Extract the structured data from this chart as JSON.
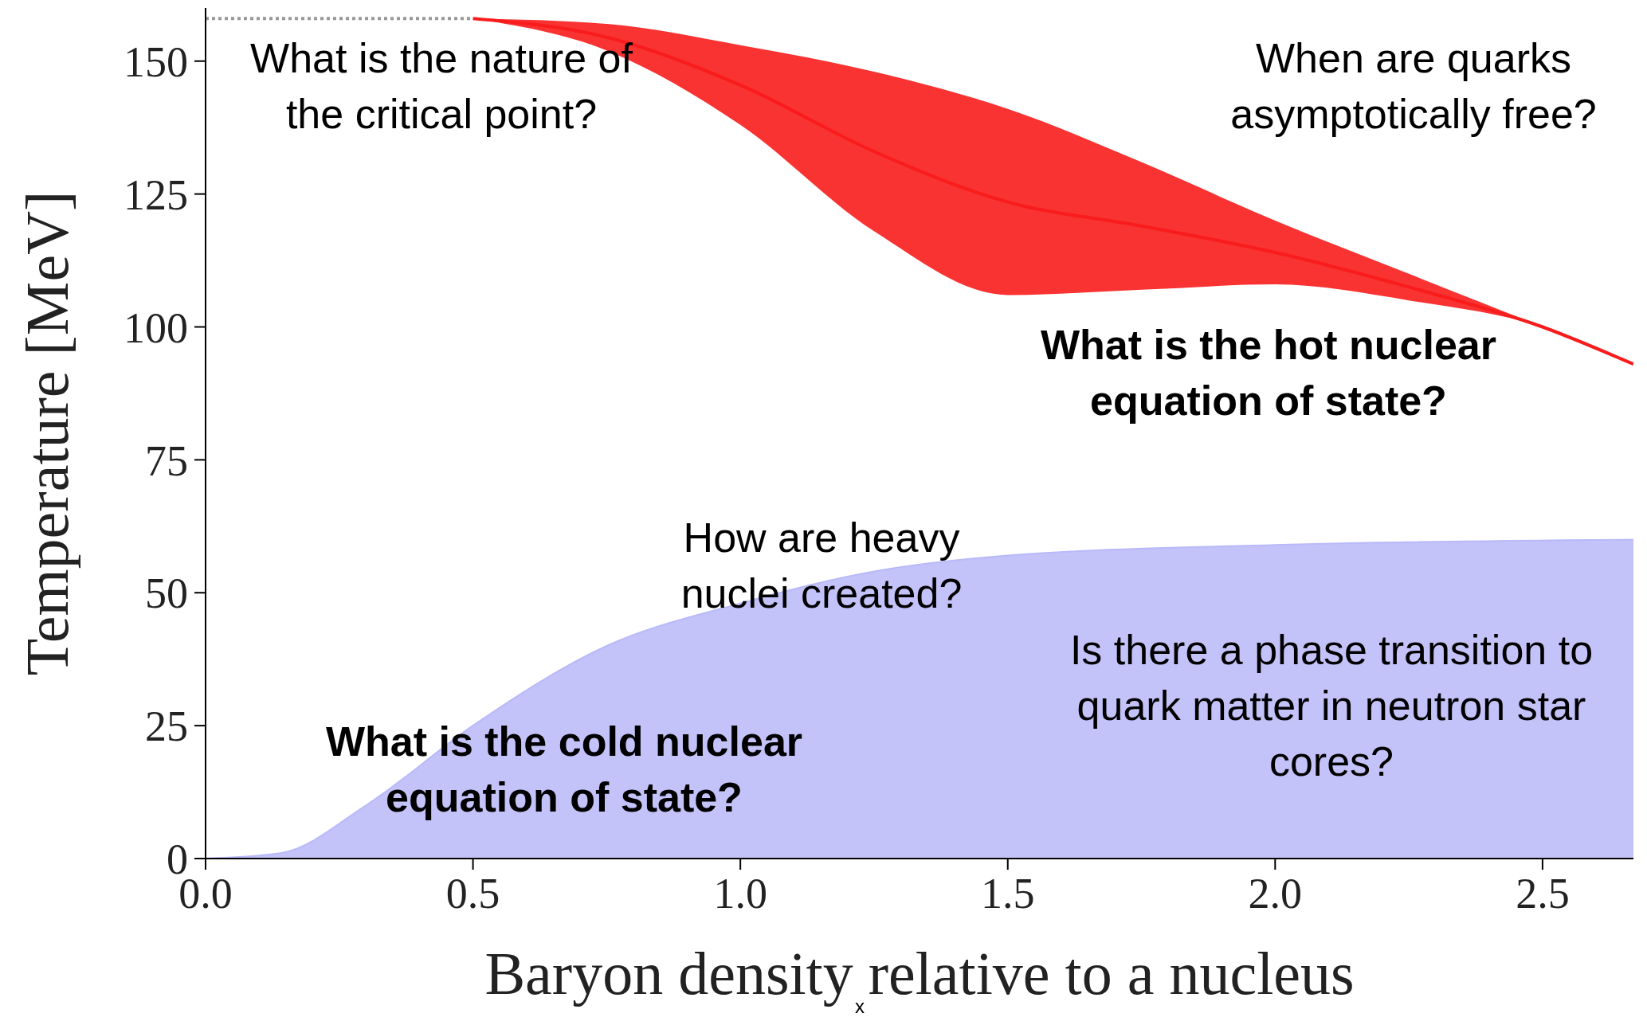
{
  "chart_data": {
    "type": "area",
    "xlabel": "Baryon density relative to a nucleus",
    "ylabel": "Temperature [MeV]",
    "xlim": [
      0,
      2.67
    ],
    "ylim": [
      0,
      160
    ],
    "xticks": [
      {
        "value": 0,
        "label": "0.0"
      },
      0.5,
      {
        "value": 1,
        "label": "1.0"
      },
      1.5,
      {
        "value": 2,
        "label": "2.0"
      },
      2.5
    ],
    "yticks": [
      0,
      25,
      50,
      75,
      100,
      125,
      150
    ],
    "series": [
      {
        "color": "#b9b9f9",
        "x": [
          0,
          0.14,
          0.3,
          0.5,
          0.75,
          1.0,
          1.25,
          1.5,
          2.0,
          2.67
        ],
        "values": [
          0,
          1,
          10,
          25,
          40,
          48,
          54,
          57,
          59,
          60
        ]
      },
      {
        "type": "line",
        "color": "#f81c1c",
        "x": [
          0.5,
          0.75,
          1.0,
          1.25,
          1.5,
          1.75,
          2.0,
          2.25,
          2.5,
          2.67
        ],
        "values": [
          158,
          154.5,
          145.5,
          133,
          123.5,
          119,
          114,
          107.5,
          100,
          93
        ],
        "lower": [
          158,
          152,
          138,
          118,
          106,
          107,
          108,
          105,
          100,
          93
        ],
        "upper": [
          158,
          157,
          153,
          148,
          141,
          131,
          120,
          110,
          100,
          93
        ]
      },
      {
        "type": "line",
        "color": "#999999",
        "line_style": "dotted",
        "x": [
          0,
          0.5
        ],
        "values": [
          158,
          158
        ]
      }
    ],
    "annotations": [
      "What is the nature of the critical point?",
      "When are quarks asymptotically free?",
      "What is the hot nuclear equation of state?",
      "How are heavy nuclei created?",
      "What is the cold nuclear equation of state?",
      "Is there a phase transition to quark matter in neutron star cores?",
      "x"
    ]
  }
}
